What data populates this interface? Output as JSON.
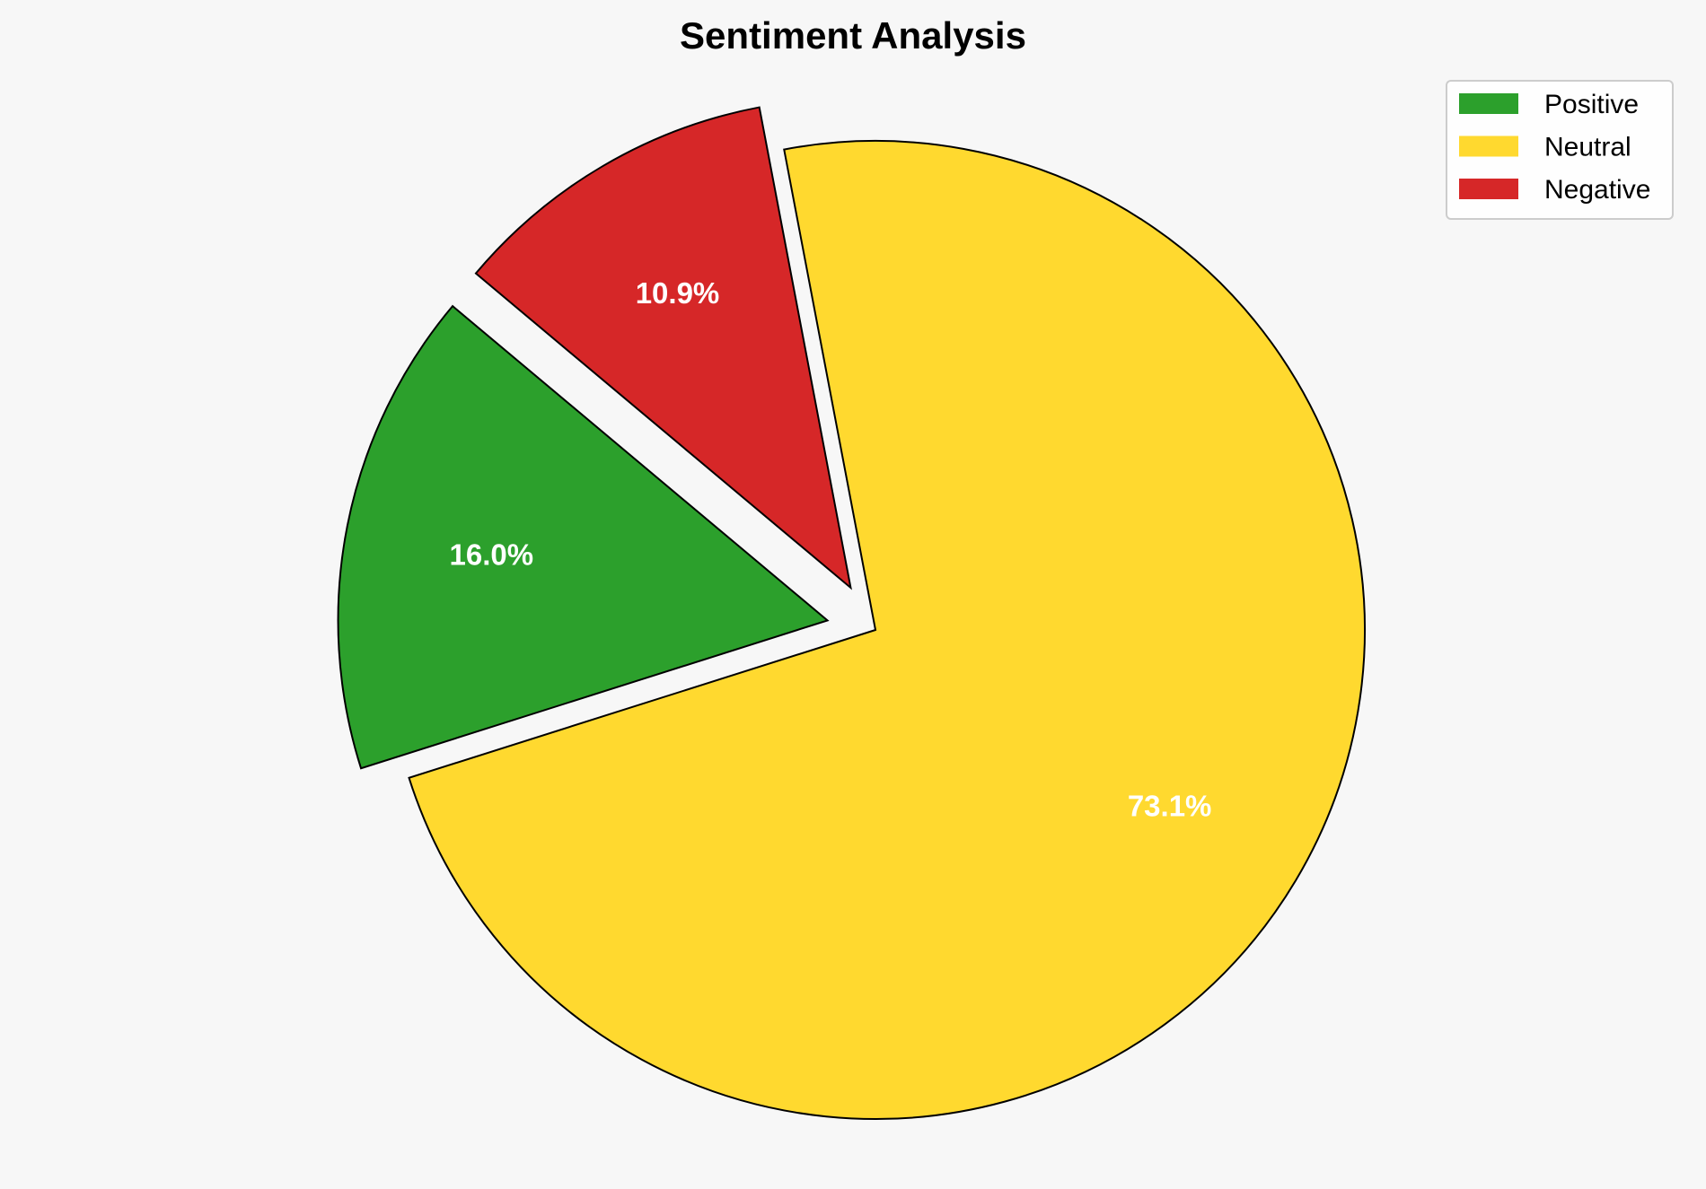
{
  "chart_data": {
    "type": "pie",
    "title": "Sentiment Analysis",
    "categories": [
      "Positive",
      "Neutral",
      "Negative"
    ],
    "values": [
      16.0,
      73.1,
      10.9
    ],
    "labels": [
      "16.0%",
      "73.1%",
      "10.9%"
    ],
    "colors": [
      "#2ca02c",
      "#ffd92f",
      "#d62728"
    ],
    "explode": [
      0.1,
      0,
      0.1
    ],
    "start_angle": 140,
    "direction": "counterclockwise",
    "legend_position": "top-right",
    "legend": [
      "Positive",
      "Neutral",
      "Negative"
    ],
    "background": "#f7f7f7"
  }
}
